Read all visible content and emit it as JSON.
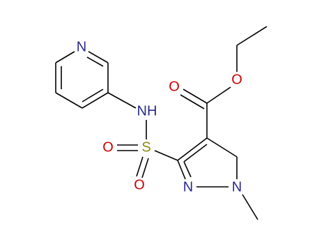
{
  "atoms": [
    {
      "label": "N"
    },
    {
      "label": "NH"
    },
    {
      "label": "S"
    },
    {
      "label": "O"
    },
    {
      "label": "O"
    },
    {
      "label": "O"
    },
    {
      "label": "O"
    },
    {
      "label": "N"
    },
    {
      "label": "N"
    }
  ]
}
